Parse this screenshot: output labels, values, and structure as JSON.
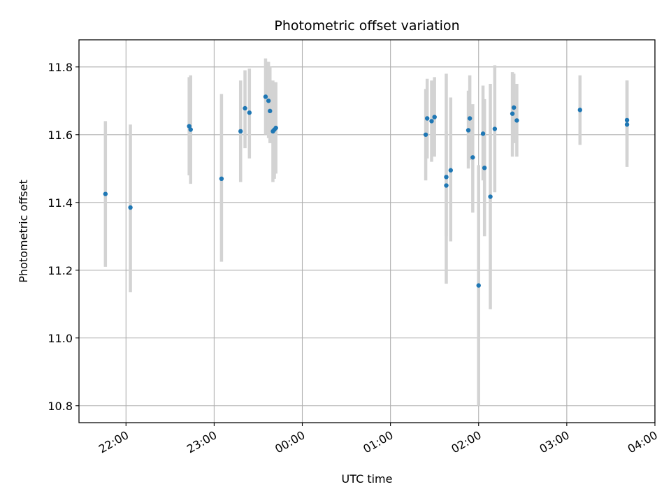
{
  "chart_data": {
    "type": "scatter",
    "title": "Photometric offset variation",
    "xlabel": "UTC time",
    "ylabel": "Photometric offset",
    "xlim": [
      "21:28",
      "04:00"
    ],
    "ylim": [
      10.75,
      11.88
    ],
    "yticks": [
      10.8,
      11.0,
      11.2,
      11.4,
      11.6,
      11.8
    ],
    "ytick_labels": [
      "10.8",
      "11.0",
      "11.2",
      "11.4",
      "11.6",
      "11.8"
    ],
    "xticks": [
      "22:00",
      "23:00",
      "00:00",
      "01:00",
      "02:00",
      "03:00",
      "04:00"
    ],
    "xtick_labels": [
      "22:00",
      "23:00",
      "00:00",
      "01:00",
      "02:00",
      "03:00",
      "04:00"
    ],
    "grid": true,
    "marker_color": "#1f77b4",
    "errorbar_color": "#d3d3d3",
    "points": [
      {
        "x": "21:46",
        "y": 11.425,
        "ylow": 11.21,
        "yhigh": 11.64
      },
      {
        "x": "22:03",
        "y": 11.385,
        "ylow": 11.135,
        "yhigh": 11.63
      },
      {
        "x": "22:43",
        "y": 11.625,
        "ylow": 11.48,
        "yhigh": 11.77
      },
      {
        "x": "22:44",
        "y": 11.615,
        "ylow": 11.455,
        "yhigh": 11.775
      },
      {
        "x": "23:05",
        "y": 11.47,
        "ylow": 11.225,
        "yhigh": 11.72
      },
      {
        "x": "23:18",
        "y": 11.61,
        "ylow": 11.46,
        "yhigh": 11.76
      },
      {
        "x": "23:21",
        "y": 11.678,
        "ylow": 11.56,
        "yhigh": 11.79
      },
      {
        "x": "23:24",
        "y": 11.665,
        "ylow": 11.53,
        "yhigh": 11.795
      },
      {
        "x": "23:35",
        "y": 11.712,
        "ylow": 11.6,
        "yhigh": 11.825
      },
      {
        "x": "23:37",
        "y": 11.7,
        "ylow": 11.59,
        "yhigh": 11.815
      },
      {
        "x": "23:38",
        "y": 11.67,
        "ylow": 11.575,
        "yhigh": 11.8
      },
      {
        "x": "23:40",
        "y": 11.61,
        "ylow": 11.46,
        "yhigh": 11.76
      },
      {
        "x": "23:41",
        "y": 11.615,
        "ylow": 11.47,
        "yhigh": 11.755
      },
      {
        "x": "23:42",
        "y": 11.62,
        "ylow": 11.485,
        "yhigh": 11.755
      },
      {
        "x": "01:24",
        "y": 11.6,
        "ylow": 11.465,
        "yhigh": 11.735
      },
      {
        "x": "01:25",
        "y": 11.648,
        "ylow": 11.53,
        "yhigh": 11.765
      },
      {
        "x": "01:28",
        "y": 11.64,
        "ylow": 11.52,
        "yhigh": 11.76
      },
      {
        "x": "01:30",
        "y": 11.652,
        "ylow": 11.535,
        "yhigh": 11.77
      },
      {
        "x": "01:38",
        "y": 11.475,
        "ylow": 11.16,
        "yhigh": 11.78
      },
      {
        "x": "01:38",
        "y": 11.45,
        "ylow": 11.3,
        "yhigh": 11.61
      },
      {
        "x": "01:41",
        "y": 11.495,
        "ylow": 11.285,
        "yhigh": 11.71
      },
      {
        "x": "01:53",
        "y": 11.613,
        "ylow": 11.5,
        "yhigh": 11.73
      },
      {
        "x": "01:54",
        "y": 11.648,
        "ylow": 11.525,
        "yhigh": 11.775
      },
      {
        "x": "01:56",
        "y": 11.533,
        "ylow": 11.37,
        "yhigh": 11.69
      },
      {
        "x": "02:00",
        "y": 11.155,
        "ylow": 10.8,
        "yhigh": 11.51
      },
      {
        "x": "02:03",
        "y": 11.603,
        "ylow": 11.465,
        "yhigh": 11.745
      },
      {
        "x": "02:04",
        "y": 11.502,
        "ylow": 11.3,
        "yhigh": 11.705
      },
      {
        "x": "02:08",
        "y": 11.417,
        "ylow": 11.085,
        "yhigh": 11.75
      },
      {
        "x": "02:11",
        "y": 11.617,
        "ylow": 11.43,
        "yhigh": 11.805
      },
      {
        "x": "02:23",
        "y": 11.662,
        "ylow": 11.535,
        "yhigh": 11.785
      },
      {
        "x": "02:24",
        "y": 11.68,
        "ylow": 11.575,
        "yhigh": 11.78
      },
      {
        "x": "02:26",
        "y": 11.642,
        "ylow": 11.535,
        "yhigh": 11.75
      },
      {
        "x": "03:09",
        "y": 11.673,
        "ylow": 11.57,
        "yhigh": 11.775
      },
      {
        "x": "03:41",
        "y": 11.63,
        "ylow": 11.505,
        "yhigh": 11.76
      },
      {
        "x": "03:41",
        "y": 11.643,
        "ylow": 11.525,
        "yhigh": 11.76
      }
    ]
  }
}
